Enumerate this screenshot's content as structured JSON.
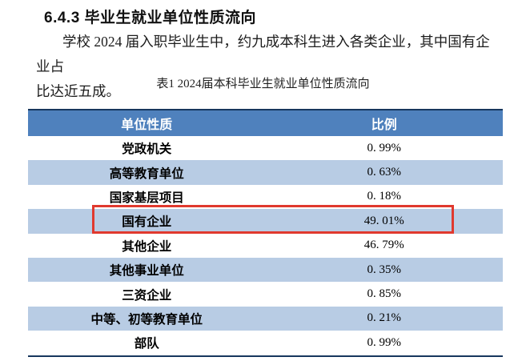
{
  "page": {
    "heading": "6.4.3 毕业生就业单位性质流向",
    "paragraph": "学校 2024 届入职毕业生中，约九成本科生进入各类企业，其中国有企业占比达近五成。",
    "paragraph_lines": {
      "line1": "学校 2024 届入职毕业生中，约九成本科生进入各类企业，其中国有企业占",
      "line2": "比达近五成。"
    },
    "table_caption": "表1 2024届本科毕业生就业单位性质流向"
  },
  "table": {
    "columns": {
      "0": "单位性质",
      "1": "比例"
    },
    "rows": [
      {
        "label": "党政机关",
        "value": "0. 99%"
      },
      {
        "label": "高等教育单位",
        "value": "0. 63%"
      },
      {
        "label": "国家基层项目",
        "value": "0. 18%"
      },
      {
        "label": "国有企业",
        "value": "49. 01%"
      },
      {
        "label": "其他企业",
        "value": "46. 79%"
      },
      {
        "label": "其他事业单位",
        "value": "0. 35%"
      },
      {
        "label": "三资企业",
        "value": "0. 85%"
      },
      {
        "label": "中等、初等教育单位",
        "value": "0. 21%"
      },
      {
        "label": "部队",
        "value": "0. 99%"
      }
    ],
    "highlight": {
      "row": "国有企业",
      "style": "red-outline-box",
      "color": "#e0392e"
    }
  },
  "colors": {
    "header_bg": "#4f81bd",
    "header_text": "#ffffff",
    "stripe_row_bg": "#b8cce4",
    "table_border": "#17365d",
    "highlight_red": "#e0392e"
  }
}
